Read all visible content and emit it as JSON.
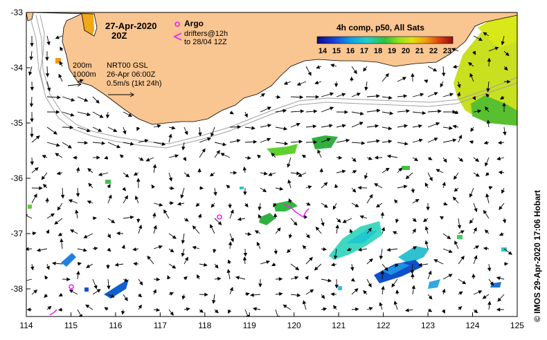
{
  "title": {
    "date": "27-Apr-2020",
    "time": "20Z"
  },
  "legend": {
    "argo_label": "Argo",
    "drifters_line1": "drifters@12h",
    "drifters_line2": "to 28/04 12Z",
    "argo_color": "#ee22ee",
    "drifter_color": "#ee22ee"
  },
  "colorbar": {
    "title": "4h comp, p50, All Sats",
    "ticks": [
      "14",
      "15",
      "16",
      "17",
      "18",
      "19",
      "20",
      "21",
      "22",
      "23"
    ]
  },
  "info": {
    "isobath_a": "200m",
    "isobath_b": "1000m",
    "product": "NRT00 GSL",
    "product_time": "26-Apr 06:00Z",
    "scale": "0.5m/s (1kt 24h)"
  },
  "axes": {
    "x_ticks": [
      "114",
      "115",
      "116",
      "117",
      "118",
      "119",
      "120",
      "121",
      "122",
      "123",
      "124",
      "125"
    ],
    "y_ticks": [
      "-33",
      "-34",
      "-35",
      "-36",
      "-37",
      "-38"
    ]
  },
  "credit": "© IMOS 29-Apr-2020 17:06 Hobart",
  "colors": {
    "land": "#f9c590",
    "isobath": "#a0a0a0",
    "arrow": "#000000"
  }
}
